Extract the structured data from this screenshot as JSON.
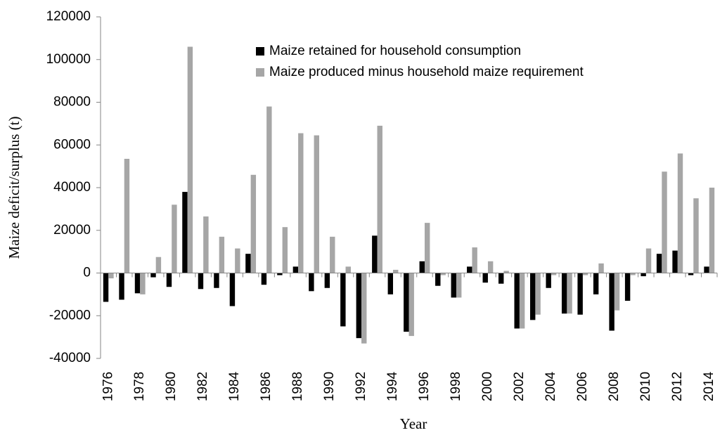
{
  "chart_data": {
    "type": "bar",
    "y_label": "Maize deficit/surplus (t)",
    "x_label": "Year",
    "categories": [
      "1976",
      null,
      "1978",
      null,
      "1980",
      null,
      "1982",
      null,
      "1984",
      null,
      "1986",
      null,
      "1988",
      null,
      "1990",
      null,
      "1992",
      null,
      "1994",
      null,
      "1996",
      null,
      "1998",
      null,
      "2000",
      null,
      "2002",
      null,
      "2004",
      null,
      "2006",
      null,
      "2008",
      null,
      "2010",
      null,
      "2012",
      null,
      "2014"
    ],
    "series": [
      {
        "name": "Maize retained for household consumption",
        "color": "#000000",
        "values": [
          -13500,
          -12500,
          -9500,
          -2000,
          -6500,
          38000,
          -7500,
          -7000,
          -15500,
          9000,
          -5500,
          -1000,
          3000,
          -8500,
          -7000,
          -25000,
          -30500,
          17500,
          -10000,
          -27500,
          5500,
          -6000,
          -11500,
          3000,
          -4500,
          -5000,
          -26000,
          -22000,
          -7000,
          -19000,
          -19500,
          -10000,
          -27000,
          -13000,
          -1500,
          9000,
          10500,
          -1000,
          3000
        ]
      },
      {
        "name": "Maize produced minus household maize requirement",
        "color": "#a6a6a6",
        "values": [
          -2500,
          53500,
          -10000,
          7500,
          32000,
          106000,
          26500,
          17000,
          11500,
          46000,
          78000,
          21500,
          65500,
          64500,
          17000,
          3000,
          -33000,
          69000,
          1500,
          -29500,
          23500,
          -1000,
          -11500,
          12000,
          5500,
          1000,
          -26000,
          -19500,
          -1000,
          -19000,
          -1000,
          4500,
          -17500,
          -1000,
          11500,
          47500,
          56000,
          35000,
          40000
        ]
      }
    ],
    "ylim": [
      -40000,
      120000
    ],
    "yticks": [
      -40000,
      -20000,
      0,
      20000,
      40000,
      60000,
      80000,
      100000,
      120000
    ],
    "grid": false
  }
}
